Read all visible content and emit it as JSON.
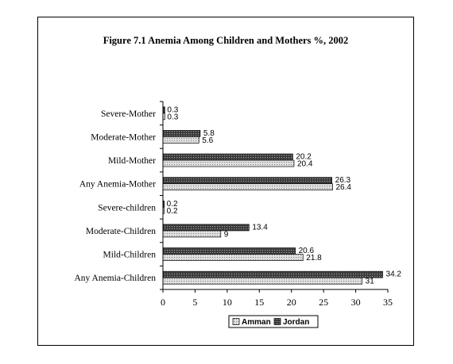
{
  "chart_data": {
    "type": "bar",
    "orientation": "horizontal",
    "title": "Figure 7.1 Anemia Among Children and Mothers %, 2002",
    "categories": [
      "Severe-Mother",
      "Moderate-Mother",
      "Mild-Mother",
      "Any Anemia-Mother",
      "Severe-children",
      "Moderate-Children",
      "Mild-Children",
      "Any Anemia-Children"
    ],
    "series": [
      {
        "name": "Jordan",
        "values": [
          "0.3",
          "5.8",
          "20.2",
          "26.3",
          "0.2",
          "13.4",
          "20.6",
          "34.2"
        ],
        "pattern": "dark-hatch"
      },
      {
        "name": "Amman",
        "values": [
          "0.3",
          "5.6",
          "20.4",
          "26.4",
          "0.2",
          "9",
          "21.8",
          "31"
        ],
        "pattern": "light-dots"
      }
    ],
    "xlim": [
      0,
      35
    ],
    "xticks": [
      "0",
      "5",
      "10",
      "15",
      "20",
      "25",
      "30",
      "35"
    ],
    "grid": false,
    "legend": {
      "position": "bottom",
      "items": [
        "Amman",
        "Jordan"
      ]
    }
  }
}
